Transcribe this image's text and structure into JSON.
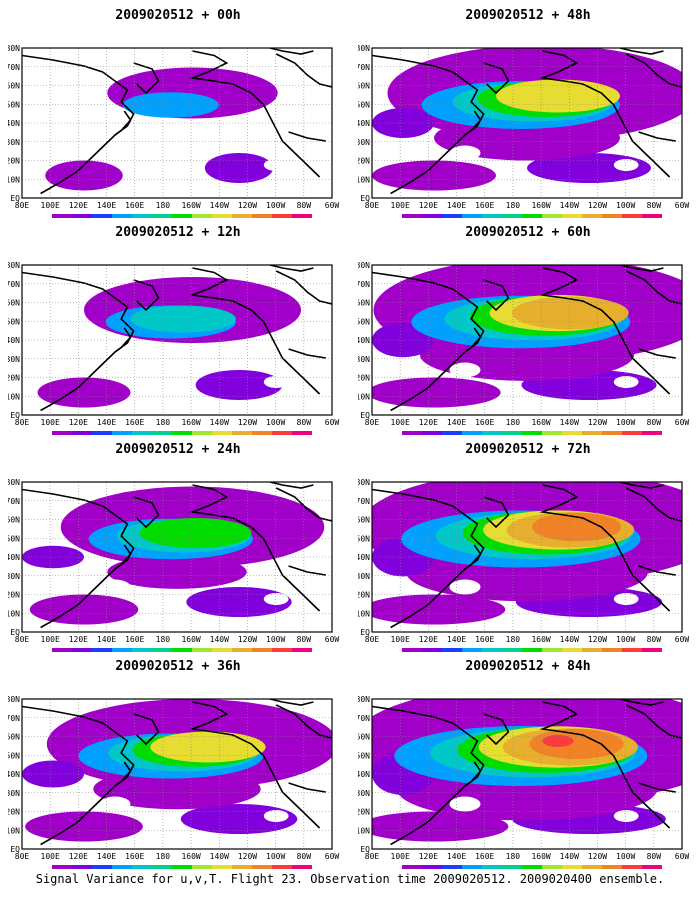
{
  "footer": "Signal Variance for u,v,T. Flight 23. Observation time 2009020512. 2009020400 ensemble.",
  "lat_labels": [
    "80N",
    "70N",
    "60N",
    "50N",
    "40N",
    "30N",
    "20N",
    "10N",
    "EQ"
  ],
  "lon_labels": [
    "80E",
    "100E",
    "120E",
    "140E",
    "160E",
    "180",
    "160W",
    "140W",
    "120W",
    "100W",
    "80W",
    "60W"
  ],
  "colorbar": {
    "values": [
      "1.6",
      "2.2",
      "3.1",
      "4",
      "5.1",
      "6.3",
      "7.5",
      "9",
      "11",
      "14",
      "21",
      "29",
      "40"
    ],
    "colors": [
      "#a000c8",
      "#8200dc",
      "#1e3cff",
      "#00a0ff",
      "#00c8c8",
      "#00d28c",
      "#00dc00",
      "#a0e632",
      "#e6dc32",
      "#e6af2d",
      "#f08228",
      "#fa3c3c",
      "#f00082"
    ]
  },
  "panels": [
    {
      "title": "2009020512 + 00h",
      "intensity": 0.25
    },
    {
      "title": "2009020512 + 48h",
      "intensity": 1.0
    },
    {
      "title": "2009020512 + 12h",
      "intensity": 0.5
    },
    {
      "title": "2009020512 + 60h",
      "intensity": 1.15
    },
    {
      "title": "2009020512 + 24h",
      "intensity": 0.75
    },
    {
      "title": "2009020512 + 72h",
      "intensity": 1.3
    },
    {
      "title": "2009020512 + 36h",
      "intensity": 0.9
    },
    {
      "title": "2009020512 + 84h",
      "intensity": 1.4
    }
  ]
}
